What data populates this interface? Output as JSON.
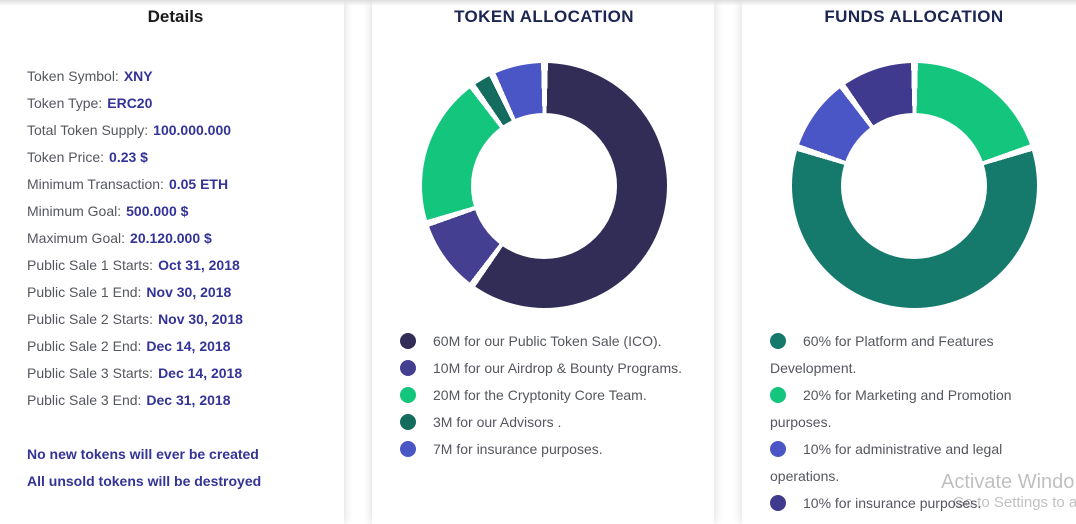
{
  "details": {
    "title": "Details",
    "rows": [
      {
        "label": "Token Symbol:",
        "value": "XNY"
      },
      {
        "label": "Token Type:",
        "value": "ERC20"
      },
      {
        "label": "Total Token Supply:",
        "value": "100.000.000"
      },
      {
        "label": "Token Price:",
        "value": "0.23 $"
      },
      {
        "label": "Minimum Transaction:",
        "value": "0.05 ETH"
      },
      {
        "label": "Minimum Goal:",
        "value": "500.000 $"
      },
      {
        "label": "Maximum Goal:",
        "value": "20.120.000 $"
      },
      {
        "label": "Public Sale 1 Starts:",
        "value": "Oct 31, 2018"
      },
      {
        "label": "Public Sale 1 End:",
        "value": "Nov 30, 2018"
      },
      {
        "label": "Public Sale 2 Starts:",
        "value": "Nov 30, 2018"
      },
      {
        "label": "Public Sale 2 End:",
        "value": "Dec 14, 2018"
      },
      {
        "label": "Public Sale 3 Starts:",
        "value": "Dec 14, 2018"
      },
      {
        "label": "Public Sale 3 End:",
        "value": "Dec 31, 2018"
      }
    ],
    "notes": [
      "No new tokens will ever be created",
      "All unsold tokens will be destroyed"
    ]
  },
  "chart_data": [
    {
      "id": "token-allocation",
      "type": "pie",
      "subtype": "donut",
      "title": "TOKEN ALLOCATION",
      "unit": "M tokens",
      "total": 100,
      "legend_position": "bottom",
      "start_angle_deg": 0,
      "direction": "clockwise",
      "items": [
        {
          "label": "60M for our Public Token Sale (ICO).",
          "value": 60,
          "color": "#322D57"
        },
        {
          "label": "10M for our Airdrop & Bounty Programs.",
          "value": 10,
          "color": "#453F92"
        },
        {
          "label": "20M for the Cryptonity Core Team.",
          "value": 20,
          "color": "#13C57D"
        },
        {
          "label": "3M for our Advisors .",
          "value": 3,
          "color": "#146C5E"
        },
        {
          "label": "7M for insurance purposes.",
          "value": 7,
          "color": "#4A56C6"
        }
      ],
      "draw_order": [
        0,
        1,
        2,
        3,
        4
      ]
    },
    {
      "id": "funds-allocation",
      "type": "pie",
      "subtype": "donut",
      "title": "FUNDS ALLOCATION",
      "unit": "%",
      "total": 100,
      "legend_position": "bottom",
      "start_angle_deg": 0,
      "direction": "clockwise",
      "items": [
        {
          "label": "60% for Platform and Features Development.",
          "value": 60,
          "color": "#15796B"
        },
        {
          "label": "20% for Marketing and Promotion purposes.",
          "value": 20,
          "color": "#13C57D"
        },
        {
          "label": "10% for administrative and legal operations.",
          "value": 10,
          "color": "#4A56C6"
        },
        {
          "label": "10% for insurance purposes.",
          "value": 10,
          "color": "#403A8F"
        }
      ],
      "draw_order": [
        1,
        0,
        2,
        3
      ]
    }
  ],
  "watermark": {
    "line1": "Activate Windo",
    "line2": "Go to Settings to act"
  },
  "theme": {
    "page_bg": "#ffffff",
    "card_bg": "#ffffff",
    "heading_text": "#1A1A1A",
    "chart_title_text": "#1B2653",
    "label_text": "#55575E",
    "value_text": "#343397",
    "legend_text": "#55575E",
    "watermark_text": "rgba(0,0,0,0.25)"
  }
}
